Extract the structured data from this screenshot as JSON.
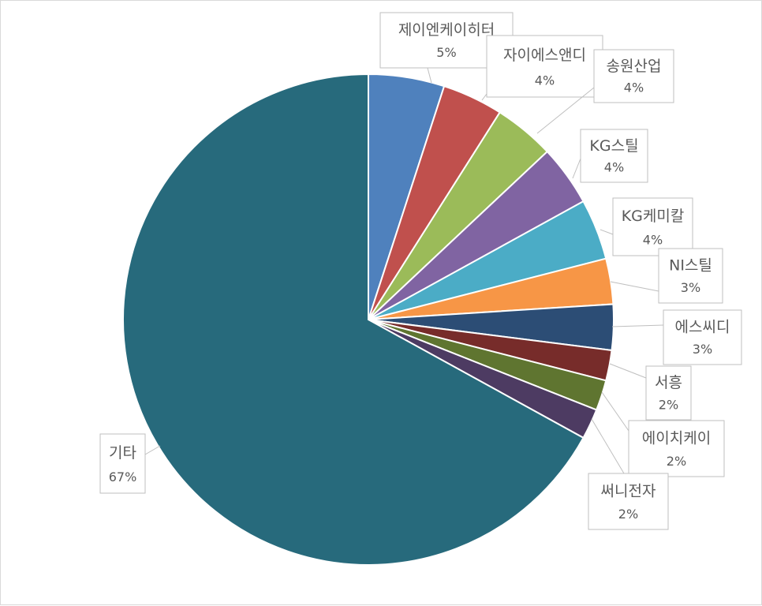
{
  "chart_data": {
    "type": "pie",
    "title": "",
    "categories": [
      "제이엔케이히터",
      "자이에스앤디",
      "송원산업",
      "KG스틸",
      "KG케미칼",
      "NI스틸",
      "에스씨디",
      "서흥",
      "에이치케이",
      "써니전자",
      "기타"
    ],
    "values": [
      5,
      4,
      4,
      4,
      4,
      3,
      3,
      2,
      2,
      2,
      67
    ],
    "value_labels": [
      "5%",
      "4%",
      "4%",
      "4%",
      "4%",
      "3%",
      "3%",
      "2%",
      "2%",
      "2%",
      "67%"
    ],
    "colors": [
      "#4f81bd",
      "#c0504d",
      "#9bbb59",
      "#8064a2",
      "#4bacc6",
      "#f79646",
      "#2c4d75",
      "#772c2a",
      "#5f7530",
      "#4d3b62",
      "#276a7c"
    ],
    "start_angle_deg": 0,
    "direction": "clockwise",
    "legend": "none",
    "data_labels": "callouts with leader lines"
  }
}
